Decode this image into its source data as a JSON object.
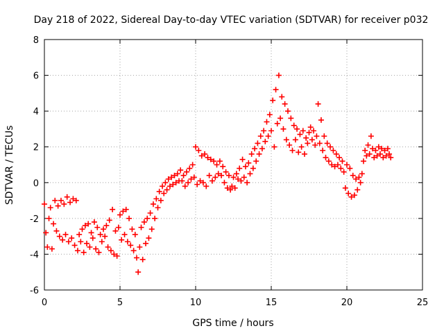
{
  "chart_data": {
    "type": "scatter",
    "title": "Day 218 of 2022, Sidereal Day-to-day VTEC variation (SDTVAR) for receiver p032",
    "xlabel": "GPS time / hours",
    "ylabel": "SDTVAR / TECUs",
    "xlim": [
      0,
      25
    ],
    "ylim": [
      -6,
      8
    ],
    "xticks": [
      "0",
      "5",
      "10",
      "15",
      "20",
      "25"
    ],
    "yticks": [
      "-6",
      "-4",
      "-2",
      "0",
      "2",
      "4",
      "6",
      "8"
    ],
    "grid": true,
    "marker": "+",
    "color": "#ff0000",
    "series": [
      {
        "name": "p032",
        "values": [
          [
            0.0,
            -1.2
          ],
          [
            0.1,
            -2.8
          ],
          [
            0.2,
            -3.6
          ],
          [
            0.3,
            -2.0
          ],
          [
            0.4,
            -1.4
          ],
          [
            0.5,
            -3.7
          ],
          [
            0.6,
            -2.3
          ],
          [
            0.7,
            -1.0
          ],
          [
            0.8,
            -2.7
          ],
          [
            0.9,
            -1.3
          ],
          [
            1.0,
            -3.0
          ],
          [
            1.1,
            -1.0
          ],
          [
            1.2,
            -3.2
          ],
          [
            1.3,
            -1.2
          ],
          [
            1.4,
            -2.9
          ],
          [
            1.5,
            -0.8
          ],
          [
            1.6,
            -3.3
          ],
          [
            1.7,
            -1.1
          ],
          [
            1.8,
            -3.1
          ],
          [
            1.9,
            -0.9
          ],
          [
            2.0,
            -3.5
          ],
          [
            2.1,
            -1.0
          ],
          [
            2.2,
            -3.8
          ],
          [
            2.3,
            -2.9
          ],
          [
            2.4,
            -3.3
          ],
          [
            2.5,
            -2.6
          ],
          [
            2.6,
            -3.9
          ],
          [
            2.7,
            -2.4
          ],
          [
            2.8,
            -3.4
          ],
          [
            2.9,
            -2.3
          ],
          [
            3.0,
            -3.6
          ],
          [
            3.1,
            -2.8
          ],
          [
            3.2,
            -3.1
          ],
          [
            3.3,
            -2.2
          ],
          [
            3.4,
            -3.7
          ],
          [
            3.5,
            -2.5
          ],
          [
            3.6,
            -3.9
          ],
          [
            3.7,
            -2.9
          ],
          [
            3.8,
            -3.3
          ],
          [
            3.9,
            -2.6
          ],
          [
            4.0,
            -3.0
          ],
          [
            4.1,
            -2.4
          ],
          [
            4.2,
            -3.6
          ],
          [
            4.3,
            -2.1
          ],
          [
            4.4,
            -3.8
          ],
          [
            4.5,
            -1.5
          ],
          [
            4.6,
            -4.0
          ],
          [
            4.7,
            -2.7
          ],
          [
            4.8,
            -4.1
          ],
          [
            4.9,
            -2.5
          ],
          [
            5.0,
            -1.8
          ],
          [
            5.1,
            -3.2
          ],
          [
            5.2,
            -1.6
          ],
          [
            5.3,
            -2.9
          ],
          [
            5.4,
            -1.5
          ],
          [
            5.5,
            -3.3
          ],
          [
            5.6,
            -2.0
          ],
          [
            5.7,
            -3.5
          ],
          [
            5.8,
            -2.6
          ],
          [
            5.9,
            -3.8
          ],
          [
            6.0,
            -2.9
          ],
          [
            6.1,
            -4.2
          ],
          [
            6.2,
            -5.0
          ],
          [
            6.3,
            -3.6
          ],
          [
            6.4,
            -2.5
          ],
          [
            6.5,
            -4.3
          ],
          [
            6.6,
            -2.2
          ],
          [
            6.7,
            -3.4
          ],
          [
            6.8,
            -2.0
          ],
          [
            6.9,
            -3.1
          ],
          [
            7.0,
            -1.7
          ],
          [
            7.1,
            -2.6
          ],
          [
            7.2,
            -1.2
          ],
          [
            7.3,
            -2.0
          ],
          [
            7.4,
            -0.9
          ],
          [
            7.5,
            -1.4
          ],
          [
            7.6,
            -0.5
          ],
          [
            7.7,
            -1.0
          ],
          [
            7.8,
            -0.2
          ],
          [
            7.9,
            -0.6
          ],
          [
            8.0,
            0.0
          ],
          [
            8.1,
            -0.4
          ],
          [
            8.2,
            0.2
          ],
          [
            8.3,
            -0.2
          ],
          [
            8.4,
            0.3
          ],
          [
            8.5,
            -0.1
          ],
          [
            8.6,
            0.4
          ],
          [
            8.7,
            0.0
          ],
          [
            8.8,
            0.5
          ],
          [
            8.9,
            0.1
          ],
          [
            9.0,
            0.7
          ],
          [
            9.1,
            0.1
          ],
          [
            9.2,
            0.4
          ],
          [
            9.3,
            -0.2
          ],
          [
            9.4,
            0.6
          ],
          [
            9.5,
            0.0
          ],
          [
            9.6,
            0.8
          ],
          [
            9.7,
            0.2
          ],
          [
            9.8,
            1.0
          ],
          [
            9.9,
            0.3
          ],
          [
            10.0,
            2.0
          ],
          [
            10.1,
            -0.1
          ],
          [
            10.2,
            1.8
          ],
          [
            10.3,
            0.1
          ],
          [
            10.4,
            1.5
          ],
          [
            10.5,
            0.0
          ],
          [
            10.6,
            1.6
          ],
          [
            10.7,
            -0.2
          ],
          [
            10.8,
            1.4
          ],
          [
            10.9,
            0.4
          ],
          [
            11.0,
            1.3
          ],
          [
            11.1,
            0.1
          ],
          [
            11.2,
            1.2
          ],
          [
            11.3,
            0.3
          ],
          [
            11.4,
            1.0
          ],
          [
            11.5,
            0.5
          ],
          [
            11.6,
            1.2
          ],
          [
            11.7,
            0.4
          ],
          [
            11.8,
            0.9
          ],
          [
            11.9,
            0.0
          ],
          [
            12.0,
            0.6
          ],
          [
            12.1,
            -0.3
          ],
          [
            12.2,
            0.4
          ],
          [
            12.3,
            -0.4
          ],
          [
            12.4,
            -0.2
          ],
          [
            12.5,
            0.3
          ],
          [
            12.6,
            -0.3
          ],
          [
            12.7,
            0.5
          ],
          [
            12.8,
            0.2
          ],
          [
            12.9,
            0.8
          ],
          [
            13.0,
            0.1
          ],
          [
            13.1,
            1.3
          ],
          [
            13.2,
            0.3
          ],
          [
            13.3,
            0.9
          ],
          [
            13.4,
            0.0
          ],
          [
            13.5,
            1.1
          ],
          [
            13.6,
            0.5
          ],
          [
            13.7,
            1.6
          ],
          [
            13.8,
            0.8
          ],
          [
            13.9,
            1.9
          ],
          [
            14.0,
            1.2
          ],
          [
            14.1,
            2.2
          ],
          [
            14.2,
            1.6
          ],
          [
            14.3,
            2.6
          ],
          [
            14.4,
            1.9
          ],
          [
            14.5,
            2.9
          ],
          [
            14.6,
            2.3
          ],
          [
            14.7,
            3.4
          ],
          [
            14.8,
            2.6
          ],
          [
            14.9,
            3.8
          ],
          [
            15.0,
            2.9
          ],
          [
            15.1,
            4.6
          ],
          [
            15.2,
            2.0
          ],
          [
            15.3,
            5.2
          ],
          [
            15.4,
            3.3
          ],
          [
            15.5,
            6.0
          ],
          [
            15.6,
            3.6
          ],
          [
            15.7,
            4.8
          ],
          [
            15.8,
            3.0
          ],
          [
            15.9,
            4.4
          ],
          [
            16.0,
            2.4
          ],
          [
            16.1,
            4.0
          ],
          [
            16.2,
            2.1
          ],
          [
            16.3,
            3.6
          ],
          [
            16.4,
            1.8
          ],
          [
            16.5,
            3.2
          ],
          [
            16.6,
            2.4
          ],
          [
            16.7,
            3.0
          ],
          [
            16.8,
            1.7
          ],
          [
            16.9,
            2.7
          ],
          [
            17.0,
            2.0
          ],
          [
            17.1,
            2.9
          ],
          [
            17.2,
            1.6
          ],
          [
            17.3,
            2.5
          ],
          [
            17.4,
            2.2
          ],
          [
            17.5,
            2.8
          ],
          [
            17.6,
            3.1
          ],
          [
            17.7,
            2.4
          ],
          [
            17.8,
            2.9
          ],
          [
            17.9,
            2.1
          ],
          [
            18.0,
            2.6
          ],
          [
            18.1,
            4.4
          ],
          [
            18.2,
            2.2
          ],
          [
            18.3,
            3.5
          ],
          [
            18.4,
            1.8
          ],
          [
            18.5,
            2.6
          ],
          [
            18.6,
            1.4
          ],
          [
            18.7,
            2.2
          ],
          [
            18.8,
            1.2
          ],
          [
            18.9,
            2.0
          ],
          [
            19.0,
            1.0
          ],
          [
            19.1,
            1.8
          ],
          [
            19.2,
            0.9
          ],
          [
            19.3,
            1.6
          ],
          [
            19.4,
            1.0
          ],
          [
            19.5,
            1.4
          ],
          [
            19.6,
            0.8
          ],
          [
            19.7,
            1.2
          ],
          [
            19.8,
            0.6
          ],
          [
            19.9,
            -0.3
          ],
          [
            20.0,
            1.0
          ],
          [
            20.1,
            -0.6
          ],
          [
            20.2,
            0.8
          ],
          [
            20.3,
            -0.8
          ],
          [
            20.4,
            0.4
          ],
          [
            20.5,
            -0.7
          ],
          [
            20.6,
            0.2
          ],
          [
            20.7,
            -0.4
          ],
          [
            20.8,
            0.3
          ],
          [
            20.9,
            0.0
          ],
          [
            21.0,
            0.5
          ],
          [
            21.1,
            1.2
          ],
          [
            21.2,
            1.8
          ],
          [
            21.3,
            1.5
          ],
          [
            21.4,
            2.1
          ],
          [
            21.5,
            1.6
          ],
          [
            21.6,
            2.6
          ],
          [
            21.7,
            1.9
          ],
          [
            21.8,
            1.4
          ],
          [
            21.9,
            1.8
          ],
          [
            22.0,
            1.5
          ],
          [
            22.1,
            2.0
          ],
          [
            22.2,
            1.6
          ],
          [
            22.3,
            1.9
          ],
          [
            22.4,
            1.4
          ],
          [
            22.5,
            1.8
          ],
          [
            22.6,
            1.5
          ],
          [
            22.7,
            1.9
          ],
          [
            22.8,
            1.6
          ],
          [
            22.9,
            1.4
          ]
        ]
      }
    ]
  }
}
